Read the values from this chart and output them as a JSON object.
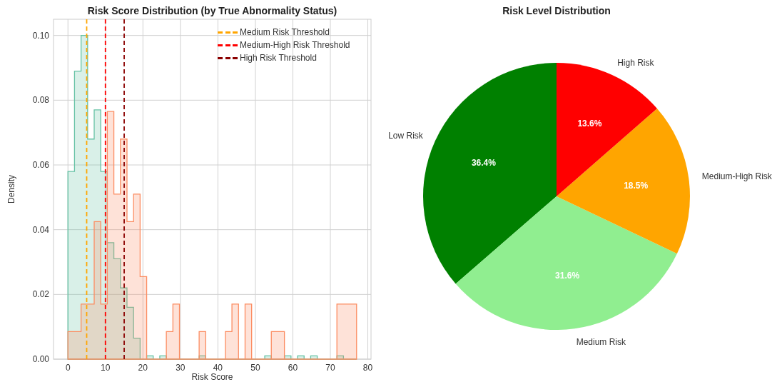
{
  "chart_data": [
    {
      "type": "histogram",
      "title": "Risk Score Distribution (by True Abnormality Status)",
      "xlabel": "Risk Score",
      "ylabel": "Density",
      "bins": [
        0,
        1.75,
        3.5,
        5.25,
        7,
        8.75,
        10.5,
        12.25,
        14,
        15.75,
        17.5,
        19.25,
        21,
        22.75,
        24.5,
        26.25,
        28,
        29.75,
        31.5,
        33.25,
        35,
        36.75,
        38.5,
        40.25,
        42,
        43.75,
        45.5,
        47.25,
        49,
        50.75,
        52.5,
        54.25,
        56,
        57.75,
        59.5,
        61.25,
        63,
        64.75,
        66.5,
        68.25,
        70,
        71.75,
        73.5,
        75.25,
        77
      ],
      "series": [
        {
          "color": "#66c2a5",
          "values": [
            0.058,
            0.089,
            0.1,
            0.068,
            0.077,
            0.058,
            0.036,
            0.031,
            0.022,
            0.016,
            0.0065,
            0,
            0.001,
            0,
            0.001,
            0,
            0,
            0,
            0,
            0,
            0.001,
            0,
            0,
            0,
            0,
            0,
            0,
            0,
            0,
            0,
            0.001,
            0,
            0,
            0.001,
            0,
            0.001,
            0,
            0.001,
            0,
            0,
            0,
            0.001,
            0,
            0
          ]
        },
        {
          "color": "#fc8d62",
          "values": [
            0.0085,
            0.0085,
            0.017,
            0.017,
            0.0425,
            0.017,
            0.0765,
            0.051,
            0.068,
            0.0425,
            0.051,
            0.0255,
            0,
            0,
            0,
            0.0085,
            0.017,
            0,
            0,
            0,
            0.0085,
            0,
            0,
            0,
            0.0085,
            0.017,
            0,
            0.017,
            0,
            0,
            0,
            0.0085,
            0.0085,
            0,
            0,
            0,
            0,
            0,
            0,
            0,
            0,
            0.017,
            0.017,
            0.017
          ]
        },
        {
          "type": "line",
          "name": "Medium Risk Threshold",
          "color": "#ffa500",
          "line_style": "dashed",
          "x": [
            5,
            5
          ],
          "values": [
            0,
            0.105
          ]
        },
        {
          "type": "line",
          "name": "Medium-High Risk Threshold",
          "color": "#ff0000",
          "line_style": "dashed",
          "x": [
            10,
            10
          ],
          "values": [
            0,
            0.105
          ]
        },
        {
          "type": "line",
          "name": "High Risk Threshold",
          "color": "#8b0000",
          "line_style": "dashed",
          "x": [
            15,
            15
          ],
          "values": [
            0,
            0.105
          ]
        }
      ],
      "xlim": [
        -3.85,
        80.85
      ],
      "xticks": [
        0,
        10,
        20,
        30,
        40,
        50,
        60,
        70,
        80
      ],
      "ylim": [
        0,
        0.105
      ],
      "yticks": [
        {
          "value": 0,
          "label": "0.00"
        },
        {
          "value": 0.02,
          "label": "0.02"
        },
        {
          "value": 0.04,
          "label": "0.04"
        },
        {
          "value": 0.06,
          "label": "0.06"
        },
        {
          "value": 0.08,
          "label": "0.08"
        },
        {
          "value": 0.1,
          "label": "0.10"
        }
      ],
      "grid": true,
      "legend": "top right"
    },
    {
      "type": "pie",
      "title": "Risk Level Distribution",
      "categories": [
        "Low Risk",
        "Medium Risk",
        "Medium-High Risk",
        "High Risk"
      ],
      "values": [
        36.4,
        31.6,
        18.5,
        13.6
      ],
      "colors": [
        "#008000",
        "#90ee90",
        "#ffa500",
        "#ff0000"
      ],
      "value_labels": [
        "36.4%",
        "31.6%",
        "18.5%",
        "13.6%"
      ]
    }
  ]
}
